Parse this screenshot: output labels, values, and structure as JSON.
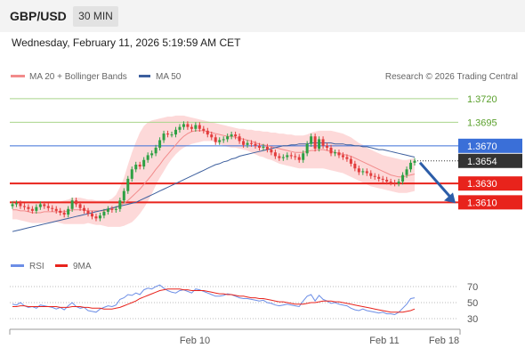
{
  "header": {
    "symbol": "GBP/USD",
    "timeframe": "30 MIN"
  },
  "datetime": "Wednesday, February 11, 2026 5:19:59 AM CET",
  "legend": {
    "bollinger_label": "MA 20 + Bollinger Bands",
    "ma50_label": "MA 50",
    "copyright": "Research © 2026 Trading Central"
  },
  "colors": {
    "up_candle": "#2ea043",
    "down_candle": "#e23c3c",
    "ma20": "#f28b8b",
    "bollinger_fill": "#fdd9d9",
    "ma50": "#3d5f9e",
    "resistance": "#a8d48a",
    "pivot": "#3a6fd8",
    "support": "#e8231c",
    "current": "#333333",
    "rsi": "#6c8ee6",
    "rsi_ma": "#e8231c",
    "arrow": "#2c5da8"
  },
  "chart_data": [
    {
      "type": "candlestick",
      "title": "GBP/USD",
      "xlabel": "",
      "ylabel": "",
      "x_ticks": [
        "Feb 10",
        "Feb 11",
        "Feb 18"
      ],
      "ylim": [
        1.3565,
        1.3735
      ],
      "levels": [
        {
          "value": 1.372,
          "label": "1.3720",
          "kind": "resistance"
        },
        {
          "value": 1.3695,
          "label": "1.3695",
          "kind": "resistance"
        },
        {
          "value": 1.367,
          "label": "1.3670",
          "kind": "pivot"
        },
        {
          "value": 1.3654,
          "label": "1.3654",
          "kind": "current"
        },
        {
          "value": 1.363,
          "label": "1.3630",
          "kind": "support"
        },
        {
          "value": 1.361,
          "label": "1.3610",
          "kind": "support"
        }
      ],
      "close": [
        1.3608,
        1.3609,
        1.3606,
        1.3605,
        1.3603,
        1.3601,
        1.3605,
        1.3608,
        1.3606,
        1.3604,
        1.3603,
        1.3601,
        1.3599,
        1.3597,
        1.3603,
        1.3612,
        1.3608,
        1.3604,
        1.3601,
        1.3598,
        1.3595,
        1.3593,
        1.3596,
        1.36,
        1.3603,
        1.3602,
        1.3603,
        1.3612,
        1.3622,
        1.3635,
        1.3645,
        1.365,
        1.3648,
        1.3655,
        1.366,
        1.3662,
        1.3668,
        1.3676,
        1.3683,
        1.3682,
        1.3682,
        1.3687,
        1.369,
        1.3693,
        1.369,
        1.3688,
        1.3692,
        1.3688,
        1.3686,
        1.3682,
        1.3679,
        1.3674,
        1.3676,
        1.3677,
        1.368,
        1.3682,
        1.368,
        1.3675,
        1.3671,
        1.3673,
        1.3672,
        1.367,
        1.3668,
        1.3669,
        1.3666,
        1.3663,
        1.3659,
        1.3657,
        1.3658,
        1.366,
        1.3659,
        1.3658,
        1.3655,
        1.3662,
        1.3672,
        1.368,
        1.3667,
        1.3677,
        1.367,
        1.3668,
        1.3662,
        1.3663,
        1.366,
        1.3658,
        1.3656,
        1.3651,
        1.3646,
        1.3642,
        1.3643,
        1.3641,
        1.3638,
        1.3637,
        1.3635,
        1.3634,
        1.3632,
        1.3631,
        1.363,
        1.3632,
        1.3639,
        1.3645,
        1.3652,
        1.3654
      ],
      "ma20": [
        1.3602,
        1.3602,
        1.3601,
        1.3601,
        1.36,
        1.3599,
        1.3599,
        1.3599,
        1.36,
        1.36,
        1.36,
        1.36,
        1.36,
        1.36,
        1.3601,
        1.3602,
        1.3602,
        1.3602,
        1.3602,
        1.3601,
        1.3601,
        1.3601,
        1.3601,
        1.3601,
        1.3602,
        1.3603,
        1.3605,
        1.3607,
        1.3609,
        1.3612,
        1.3616,
        1.362,
        1.3624,
        1.3629,
        1.3634,
        1.3639,
        1.3645,
        1.365,
        1.3656,
        1.3661,
        1.3666,
        1.3671,
        1.3676,
        1.368,
        1.3683,
        1.3685,
        1.3686,
        1.3686,
        1.3686,
        1.3685,
        1.3684,
        1.3683,
        1.3682,
        1.3681,
        1.368,
        1.368,
        1.3679,
        1.3678,
        1.3677,
        1.3676,
        1.3675,
        1.3673,
        1.3672,
        1.3671,
        1.367,
        1.3669,
        1.3668,
        1.3667,
        1.3666,
        1.3665,
        1.3664,
        1.3663,
        1.3663,
        1.3663,
        1.3664,
        1.3665,
        1.3665,
        1.3666,
        1.3666,
        1.3665,
        1.3664,
        1.3663,
        1.3662,
        1.3661,
        1.366,
        1.3659,
        1.3657,
        1.3655,
        1.3653,
        1.3651,
        1.3649,
        1.3647,
        1.3645,
        1.3643,
        1.3641,
        1.3639,
        1.3638,
        1.3637,
        1.3637,
        1.3638,
        1.3639,
        1.364
      ],
      "bb_upper": [
        1.3612,
        1.3612,
        1.3611,
        1.3611,
        1.361,
        1.361,
        1.361,
        1.361,
        1.361,
        1.3611,
        1.3611,
        1.3611,
        1.3611,
        1.3612,
        1.3613,
        1.3615,
        1.3615,
        1.3615,
        1.3614,
        1.3613,
        1.3613,
        1.3612,
        1.3612,
        1.3612,
        1.3612,
        1.3614,
        1.3618,
        1.3626,
        1.3636,
        1.365,
        1.3663,
        1.3674,
        1.3684,
        1.3691,
        1.3695,
        1.3697,
        1.3698,
        1.3699,
        1.37,
        1.3701,
        1.3701,
        1.3702,
        1.3702,
        1.3702,
        1.3701,
        1.37,
        1.3699,
        1.3698,
        1.3697,
        1.3696,
        1.3695,
        1.3694,
        1.3693,
        1.3692,
        1.3691,
        1.369,
        1.3689,
        1.3688,
        1.3688,
        1.3687,
        1.3687,
        1.3686,
        1.3686,
        1.3685,
        1.3685,
        1.3684,
        1.3684,
        1.3683,
        1.3683,
        1.3682,
        1.3682,
        1.3681,
        1.3681,
        1.3681,
        1.3682,
        1.3684,
        1.3685,
        1.3686,
        1.3686,
        1.3686,
        1.3686,
        1.3685,
        1.3684,
        1.3683,
        1.3681,
        1.3679,
        1.3676,
        1.3673,
        1.3671,
        1.3668,
        1.3666,
        1.3664,
        1.3662,
        1.366,
        1.3659,
        1.3658,
        1.3657,
        1.3656,
        1.3655,
        1.3655,
        1.3656,
        1.3657
      ],
      "bb_lower": [
        1.3592,
        1.3592,
        1.3591,
        1.359,
        1.3589,
        1.3588,
        1.3588,
        1.3588,
        1.3588,
        1.3589,
        1.3589,
        1.3589,
        1.3588,
        1.3587,
        1.3587,
        1.3587,
        1.3587,
        1.3587,
        1.3587,
        1.3588,
        1.3587,
        1.3586,
        1.3586,
        1.3585,
        1.3584,
        1.3584,
        1.3584,
        1.3584,
        1.3585,
        1.3587,
        1.3589,
        1.3593,
        1.3598,
        1.3604,
        1.3611,
        1.3619,
        1.3628,
        1.3636,
        1.3643,
        1.365,
        1.3656,
        1.3661,
        1.3665,
        1.3668,
        1.367,
        1.3672,
        1.3673,
        1.3674,
        1.3675,
        1.3675,
        1.3675,
        1.3674,
        1.3672,
        1.367,
        1.3669,
        1.3668,
        1.3668,
        1.3667,
        1.3666,
        1.3665,
        1.3663,
        1.3661,
        1.3659,
        1.3658,
        1.3656,
        1.3655,
        1.3653,
        1.3651,
        1.365,
        1.3649,
        1.3648,
        1.3647,
        1.3646,
        1.3646,
        1.3646,
        1.3646,
        1.3646,
        1.3646,
        1.3646,
        1.3645,
        1.3644,
        1.3643,
        1.3642,
        1.3641,
        1.3639,
        1.3637,
        1.3635,
        1.3633,
        1.3631,
        1.3629,
        1.3627,
        1.3626,
        1.3625,
        1.3624,
        1.3623,
        1.3622,
        1.3621,
        1.362,
        1.362,
        1.362,
        1.3621,
        1.3622
      ],
      "ma50": [
        1.3579,
        1.358,
        1.3581,
        1.3582,
        1.3583,
        1.3584,
        1.3585,
        1.3586,
        1.3587,
        1.3588,
        1.3589,
        1.359,
        1.3591,
        1.3592,
        1.3593,
        1.3594,
        1.3595,
        1.3596,
        1.3597,
        1.3598,
        1.3599,
        1.36,
        1.3601,
        1.3602,
        1.3603,
        1.3604,
        1.3605,
        1.3606,
        1.3607,
        1.3608,
        1.3609,
        1.361,
        1.3612,
        1.3614,
        1.3616,
        1.3618,
        1.362,
        1.3622,
        1.3624,
        1.3626,
        1.3628,
        1.363,
        1.3632,
        1.3634,
        1.3636,
        1.3638,
        1.364,
        1.3642,
        1.3644,
        1.3646,
        1.3648,
        1.365,
        1.3651,
        1.3653,
        1.3654,
        1.3656,
        1.3657,
        1.3659,
        1.366,
        1.3661,
        1.3662,
        1.3663,
        1.3664,
        1.3665,
        1.3666,
        1.3667,
        1.3668,
        1.3669,
        1.367,
        1.367,
        1.3671,
        1.3671,
        1.3672,
        1.3672,
        1.3672,
        1.3673,
        1.3673,
        1.3673,
        1.3673,
        1.3673,
        1.3673,
        1.3672,
        1.3672,
        1.3672,
        1.3671,
        1.3671,
        1.367,
        1.367,
        1.3669,
        1.3669,
        1.3668,
        1.3667,
        1.3666,
        1.3666,
        1.3665,
        1.3664,
        1.3663,
        1.3662,
        1.3661,
        1.366,
        1.3659,
        1.3658
      ],
      "forecast": {
        "from": 1.3654,
        "to": 1.361
      }
    },
    {
      "type": "line",
      "title": "",
      "legend": [
        "RSI",
        "9MA"
      ],
      "ylim": [
        20,
        80
      ],
      "y_ticks": [
        70,
        50,
        30
      ],
      "series": [
        {
          "name": "RSI",
          "values": [
            48,
            47,
            50,
            46,
            44,
            45,
            43,
            47,
            46,
            45,
            44,
            42,
            44,
            41,
            46,
            50,
            45,
            43,
            44,
            40,
            39,
            38,
            42,
            44,
            46,
            45,
            47,
            54,
            56,
            60,
            59,
            62,
            60,
            66,
            68,
            67,
            70,
            72,
            68,
            65,
            63,
            62,
            65,
            66,
            64,
            62,
            67,
            66,
            64,
            62,
            60,
            58,
            58,
            59,
            61,
            60,
            58,
            56,
            55,
            55,
            54,
            53,
            52,
            53,
            50,
            49,
            47,
            46,
            47,
            48,
            47,
            46,
            45,
            52,
            58,
            60,
            52,
            59,
            54,
            52,
            49,
            50,
            48,
            47,
            46,
            43,
            41,
            40,
            42,
            40,
            39,
            38,
            37,
            38,
            36,
            36,
            35,
            38,
            43,
            48,
            55,
            56
          ]
        },
        {
          "name": "9MA",
          "values": [
            45,
            45,
            46,
            46,
            45,
            45,
            45,
            45,
            45,
            45,
            45,
            45,
            44,
            44,
            44,
            45,
            45,
            45,
            44,
            44,
            43,
            43,
            43,
            42,
            42,
            42,
            43,
            44,
            46,
            48,
            50,
            52,
            55,
            57,
            59,
            61,
            63,
            65,
            66,
            67,
            67,
            67,
            67,
            66,
            66,
            65,
            65,
            65,
            65,
            64,
            63,
            62,
            61,
            61,
            60,
            60,
            59,
            58,
            58,
            57,
            56,
            56,
            55,
            55,
            54,
            53,
            52,
            51,
            51,
            50,
            49,
            48,
            48,
            48,
            49,
            50,
            50,
            51,
            52,
            52,
            52,
            51,
            51,
            50,
            49,
            48,
            47,
            46,
            45,
            44,
            43,
            42,
            41,
            40,
            39,
            38,
            38,
            38,
            38,
            39,
            40,
            42
          ]
        }
      ]
    }
  ]
}
